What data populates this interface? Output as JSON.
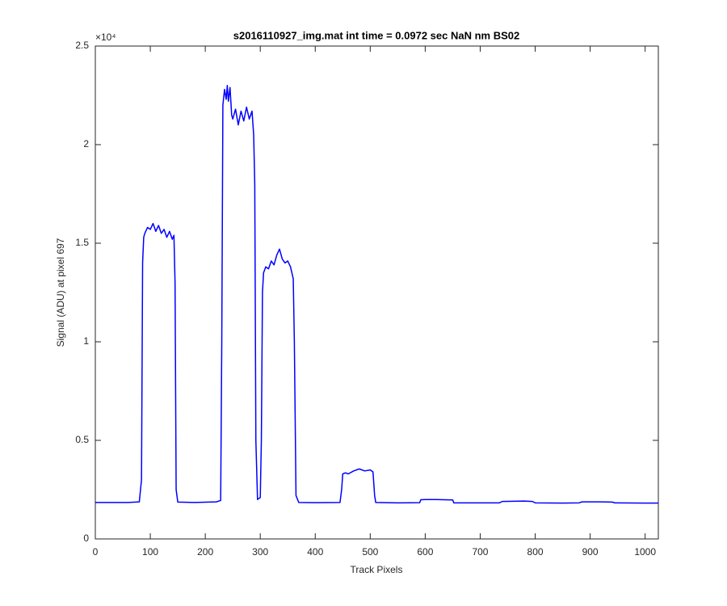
{
  "chart_data": {
    "type": "line",
    "title": "s2016110927_img.mat int time = 0.0972 sec  NaN nm BS02",
    "x_label": "Track Pixels",
    "y_label": "Signal (ADU) at pixel 697",
    "y_exponent_label": "×10⁴",
    "xlim": [
      0,
      1024
    ],
    "ylim": [
      0,
      25000
    ],
    "xticks": [
      0,
      100,
      200,
      300,
      400,
      500,
      600,
      700,
      800,
      900,
      1000
    ],
    "yticks": [
      0,
      {
        "value": 5000,
        "label": "0.5"
      },
      {
        "value": 10000,
        "label": "1"
      },
      {
        "value": 15000,
        "label": "1.5"
      },
      {
        "value": 20000,
        "label": "2"
      },
      {
        "value": 25000,
        "label": "2.5"
      }
    ],
    "grid": false,
    "series": [
      {
        "color": "#0000ff",
        "x": [
          0,
          20,
          40,
          60,
          80,
          84,
          86,
          88,
          90,
          95,
          100,
          105,
          110,
          115,
          120,
          125,
          130,
          135,
          140,
          143,
          145,
          147,
          150,
          180,
          220,
          228,
          230,
          232,
          235,
          238,
          240,
          242,
          245,
          248,
          250,
          255,
          260,
          265,
          270,
          275,
          280,
          285,
          288,
          290,
          292,
          295,
          300,
          302,
          304,
          306,
          310,
          315,
          320,
          325,
          330,
          335,
          340,
          345,
          350,
          355,
          360,
          362,
          365,
          370,
          400,
          445,
          448,
          450,
          455,
          460,
          470,
          480,
          490,
          500,
          505,
          508,
          510,
          550,
          590,
          592,
          600,
          620,
          650,
          652,
          700,
          735,
          740,
          780,
          795,
          800,
          850,
          880,
          885,
          920,
          940,
          945,
          1000,
          1024
        ],
        "values": [
          1850,
          1850,
          1850,
          1850,
          1880,
          3000,
          14000,
          15300,
          15500,
          15800,
          15700,
          16000,
          15600,
          15900,
          15500,
          15700,
          15300,
          15600,
          15200,
          15400,
          13000,
          2500,
          1870,
          1850,
          1880,
          1950,
          10000,
          22000,
          22800,
          22300,
          23000,
          22200,
          22900,
          21500,
          21300,
          21800,
          21000,
          21700,
          21200,
          21900,
          21300,
          21700,
          20500,
          18000,
          5000,
          2000,
          2100,
          5000,
          12500,
          13500,
          13800,
          13700,
          14100,
          13900,
          14400,
          14700,
          14200,
          14000,
          14100,
          13800,
          13200,
          10000,
          2200,
          1850,
          1840,
          1850,
          2500,
          3300,
          3350,
          3300,
          3450,
          3550,
          3450,
          3500,
          3400,
          2200,
          1850,
          1830,
          1840,
          1990,
          2000,
          2000,
          1980,
          1830,
          1830,
          1830,
          1900,
          1920,
          1900,
          1830,
          1820,
          1830,
          1880,
          1880,
          1870,
          1830,
          1820,
          1820
        ]
      }
    ]
  }
}
